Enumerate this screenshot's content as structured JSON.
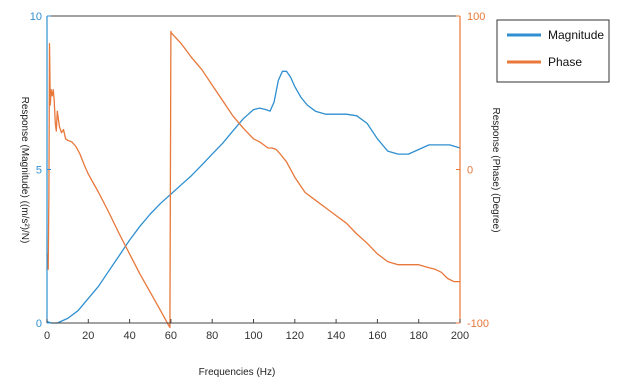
{
  "chart_data": {
    "type": "line",
    "xlabel": "Frequencies (Hz)",
    "ylabel_left": "Response (Magnitude) ((m/s²)/N)",
    "ylabel_right": "Response (Phase) (Degree)",
    "xlim": [
      0,
      200
    ],
    "ylim_left": [
      0,
      10
    ],
    "ylim_right": [
      -100,
      100
    ],
    "x_ticks": [
      "0",
      "20",
      "40",
      "60",
      "80",
      "100",
      "120",
      "140",
      "160",
      "180",
      "200"
    ],
    "y_left_ticks": [
      "0",
      "5",
      "10"
    ],
    "y_right_ticks": [
      "-100",
      "0",
      "100"
    ],
    "grid": false,
    "legend_position": "top-right outside",
    "series": [
      {
        "name": "Magnitude",
        "axis": "left",
        "color": "#2f8fd0",
        "x": [
          0,
          2,
          5,
          10,
          15,
          20,
          25,
          30,
          35,
          40,
          45,
          50,
          55,
          60,
          65,
          70,
          75,
          80,
          85,
          90,
          95,
          100,
          103,
          106,
          108,
          110,
          112,
          114,
          116,
          118,
          120,
          123,
          126,
          130,
          135,
          140,
          145,
          150,
          155,
          160,
          165,
          170,
          175,
          180,
          185,
          190,
          195,
          200
        ],
        "y": [
          0.05,
          0.0,
          0.0,
          0.15,
          0.4,
          0.8,
          1.2,
          1.7,
          2.2,
          2.7,
          3.15,
          3.55,
          3.9,
          4.2,
          4.5,
          4.8,
          5.15,
          5.5,
          5.85,
          6.25,
          6.65,
          6.95,
          7.0,
          6.95,
          6.9,
          7.2,
          7.9,
          8.2,
          8.2,
          8.0,
          7.7,
          7.35,
          7.1,
          6.9,
          6.8,
          6.8,
          6.8,
          6.75,
          6.5,
          6.0,
          5.6,
          5.5,
          5.5,
          5.65,
          5.8,
          5.8,
          5.8,
          5.7
        ]
      },
      {
        "name": "Phase",
        "axis": "right",
        "color": "#e8773a",
        "x": [
          0.3,
          0.6,
          0.9,
          1.2,
          1.6,
          2.0,
          2.5,
          3.0,
          3.5,
          4.0,
          4.5,
          5.0,
          6.0,
          7.0,
          8.0,
          9.0,
          10,
          12,
          14,
          16,
          18,
          20,
          25,
          30,
          35,
          40,
          45,
          50,
          55,
          59.5,
          60,
          60.2,
          65,
          70,
          75,
          80,
          85,
          90,
          95,
          100,
          103,
          105,
          107,
          109,
          111,
          113,
          116,
          120,
          125,
          130,
          135,
          140,
          145,
          150,
          155,
          160,
          165,
          170,
          175,
          180,
          185,
          188,
          191,
          194,
          197,
          200
        ],
        "y": [
          -55,
          -65,
          -15,
          82,
          42,
          52,
          48,
          52,
          45,
          30,
          25,
          38,
          28,
          24,
          26,
          20,
          19,
          18,
          15,
          10,
          3,
          -3,
          -15,
          -28,
          -42,
          -55,
          -68,
          -80,
          -92,
          -103,
          90,
          89,
          82,
          73,
          65,
          55,
          45,
          35,
          27,
          20,
          18,
          16,
          14,
          14,
          13,
          10,
          5,
          -5,
          -15,
          -20,
          -25,
          -30,
          -35,
          -42,
          -48,
          -55,
          -60,
          -62,
          -62,
          -62,
          -64,
          -65,
          -67,
          -71,
          -73,
          -73
        ]
      }
    ]
  }
}
